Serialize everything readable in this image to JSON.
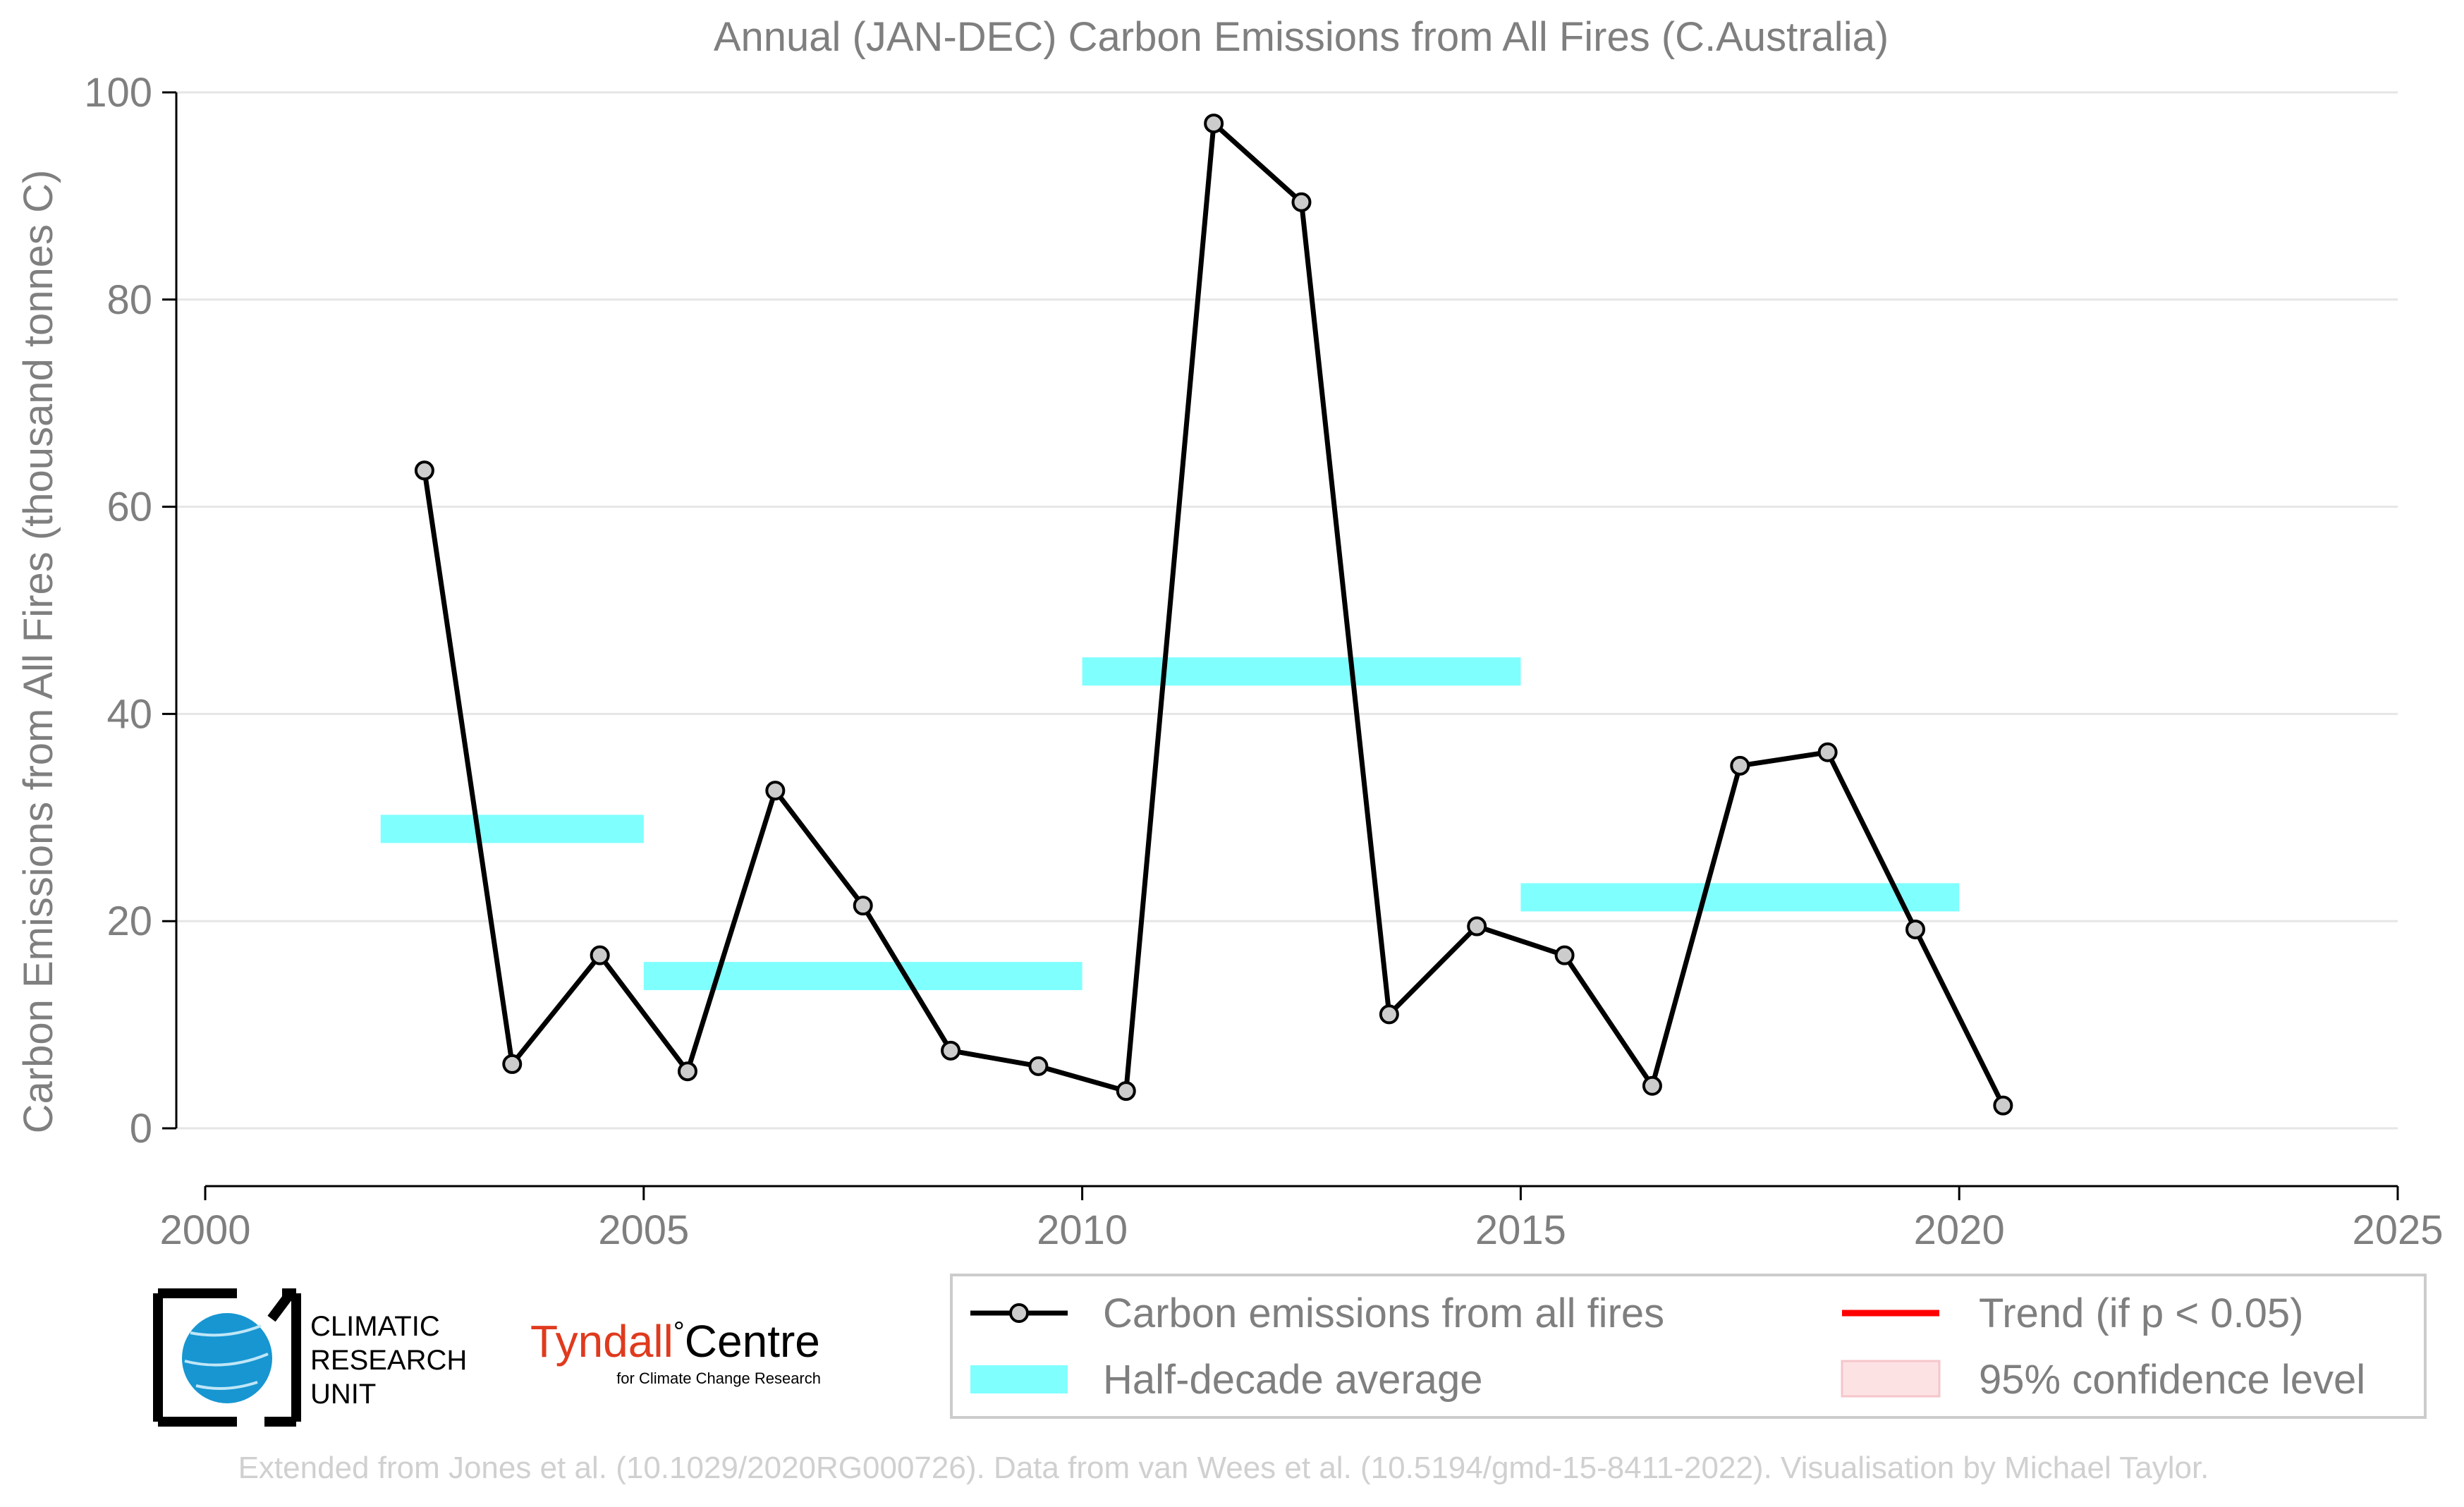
{
  "title": "Annual (JAN-DEC) Carbon Emissions from All Fires (C.Australia)",
  "credit": "Extended from Jones et al. (10.1029/2020RG000726). Data from van Wees et al. (10.5194/gmd-15-8411-2022). Visualisation by Michael Taylor.",
  "logos": {
    "cru": [
      "CLIMATIC",
      "RESEARCH",
      "UNIT"
    ],
    "tyndall_main": "Tyndall",
    "tyndall_degree": "°",
    "tyndall_centre": "Centre",
    "tyndall_sub": "for Climate Change Research"
  },
  "legend": {
    "placement": "bottom-right",
    "items": [
      {
        "label": "Carbon emissions from all fires",
        "icon": "black-line-grey-marker-icon"
      },
      {
        "label": "Trend (if p < 0.05)",
        "icon": "red-line-icon"
      },
      {
        "label": "Half-decade average",
        "icon": "cyan-band-icon"
      },
      {
        "label": "95% confidence level",
        "icon": "pink-patch-icon"
      }
    ]
  },
  "colors": {
    "series": "#000000",
    "marker_fill": "#cccccc",
    "half_decade": "#80ffff",
    "trend": "#ff0000",
    "confidence": "#fde2e4",
    "text": "#7f7f7f",
    "grid": "#e6e6e6",
    "tyndall_red": "#e03a1e",
    "cru_blue": "#1796d2"
  },
  "chart_data": {
    "type": "line",
    "title": "Annual (JAN-DEC) Carbon Emissions from All Fires (C.Australia)",
    "xlabel": "",
    "ylabel": "Carbon Emissions from All Fires (thousand tonnes C)",
    "xlim": [
      2000,
      2025
    ],
    "ylim": [
      0,
      100
    ],
    "xticks": [
      2000,
      2005,
      2010,
      2015,
      2020,
      2025
    ],
    "yticks": [
      0,
      20,
      40,
      60,
      80,
      100
    ],
    "grid": "horizontal",
    "series": [
      {
        "name": "Carbon emissions from all fires",
        "x": [
          2002.5,
          2003.5,
          2004.5,
          2005.5,
          2006.5,
          2007.5,
          2008.5,
          2009.5,
          2010.5,
          2011.5,
          2012.5,
          2013.5,
          2014.5,
          2015.5,
          2016.5,
          2017.5,
          2018.5,
          2019.5,
          2020.5
        ],
        "y": [
          63.5,
          6.2,
          16.7,
          5.5,
          32.6,
          21.5,
          7.5,
          6.0,
          3.6,
          97.0,
          89.4,
          11.0,
          19.5,
          16.7,
          4.1,
          35.0,
          36.3,
          19.2,
          2.2
        ]
      }
    ],
    "half_decade_average": [
      {
        "x_start": 2002,
        "x_end": 2005,
        "value": 28.9
      },
      {
        "x_start": 2005,
        "x_end": 2010,
        "value": 14.7
      },
      {
        "x_start": 2010,
        "x_end": 2015,
        "value": 44.1
      },
      {
        "x_start": 2015,
        "x_end": 2020,
        "value": 22.3
      }
    ]
  }
}
